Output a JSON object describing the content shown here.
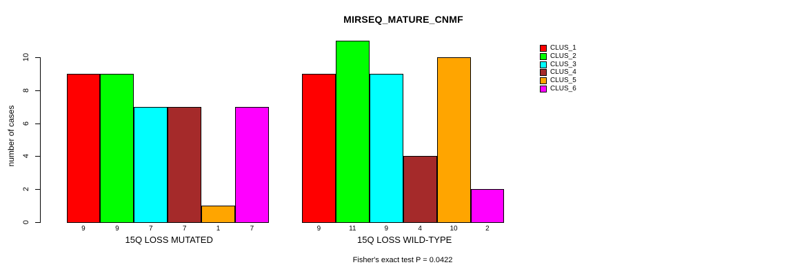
{
  "chart_data": {
    "type": "bar",
    "title": "MIRSEQ_MATURE_CNMF",
    "ylabel": "number of cases",
    "ylim": [
      0,
      11
    ],
    "yticks": [
      0,
      2,
      4,
      6,
      8,
      10
    ],
    "grid": false,
    "colors": [
      "#FF0000",
      "#00FF00",
      "#00FFFF",
      "#A52A2A",
      "#FFA500",
      "#FF00FF"
    ],
    "legend": {
      "position": "right",
      "entries": [
        {
          "label": "CLUS_1",
          "color": "#FF0000"
        },
        {
          "label": "CLUS_2",
          "color": "#00FF00"
        },
        {
          "label": "CLUS_3",
          "color": "#00FFFF"
        },
        {
          "label": "CLUS_4",
          "color": "#A52A2A"
        },
        {
          "label": "CLUS_5",
          "color": "#FFA500"
        },
        {
          "label": "CLUS_6",
          "color": "#FF00FF"
        }
      ]
    },
    "panels": [
      {
        "xlabel": "15Q LOSS MUTATED",
        "categories": [
          "CLUS_1",
          "CLUS_2",
          "CLUS_3",
          "CLUS_4",
          "CLUS_5",
          "CLUS_6"
        ],
        "values": [
          9,
          9,
          7,
          7,
          1,
          7
        ],
        "bar_labels": [
          "9",
          "9",
          "7",
          "7",
          "1",
          "7"
        ]
      },
      {
        "xlabel": "15Q LOSS WILD-TYPE",
        "categories": [
          "CLUS_1",
          "CLUS_2",
          "CLUS_3",
          "CLUS_4",
          "CLUS_5",
          "CLUS_6"
        ],
        "values": [
          9,
          11,
          9,
          4,
          10,
          2
        ],
        "bar_labels": [
          "9",
          "11",
          "9",
          "4",
          "10",
          "2"
        ]
      }
    ],
    "annotation": "Fisher's exact test P = 0.0422"
  }
}
